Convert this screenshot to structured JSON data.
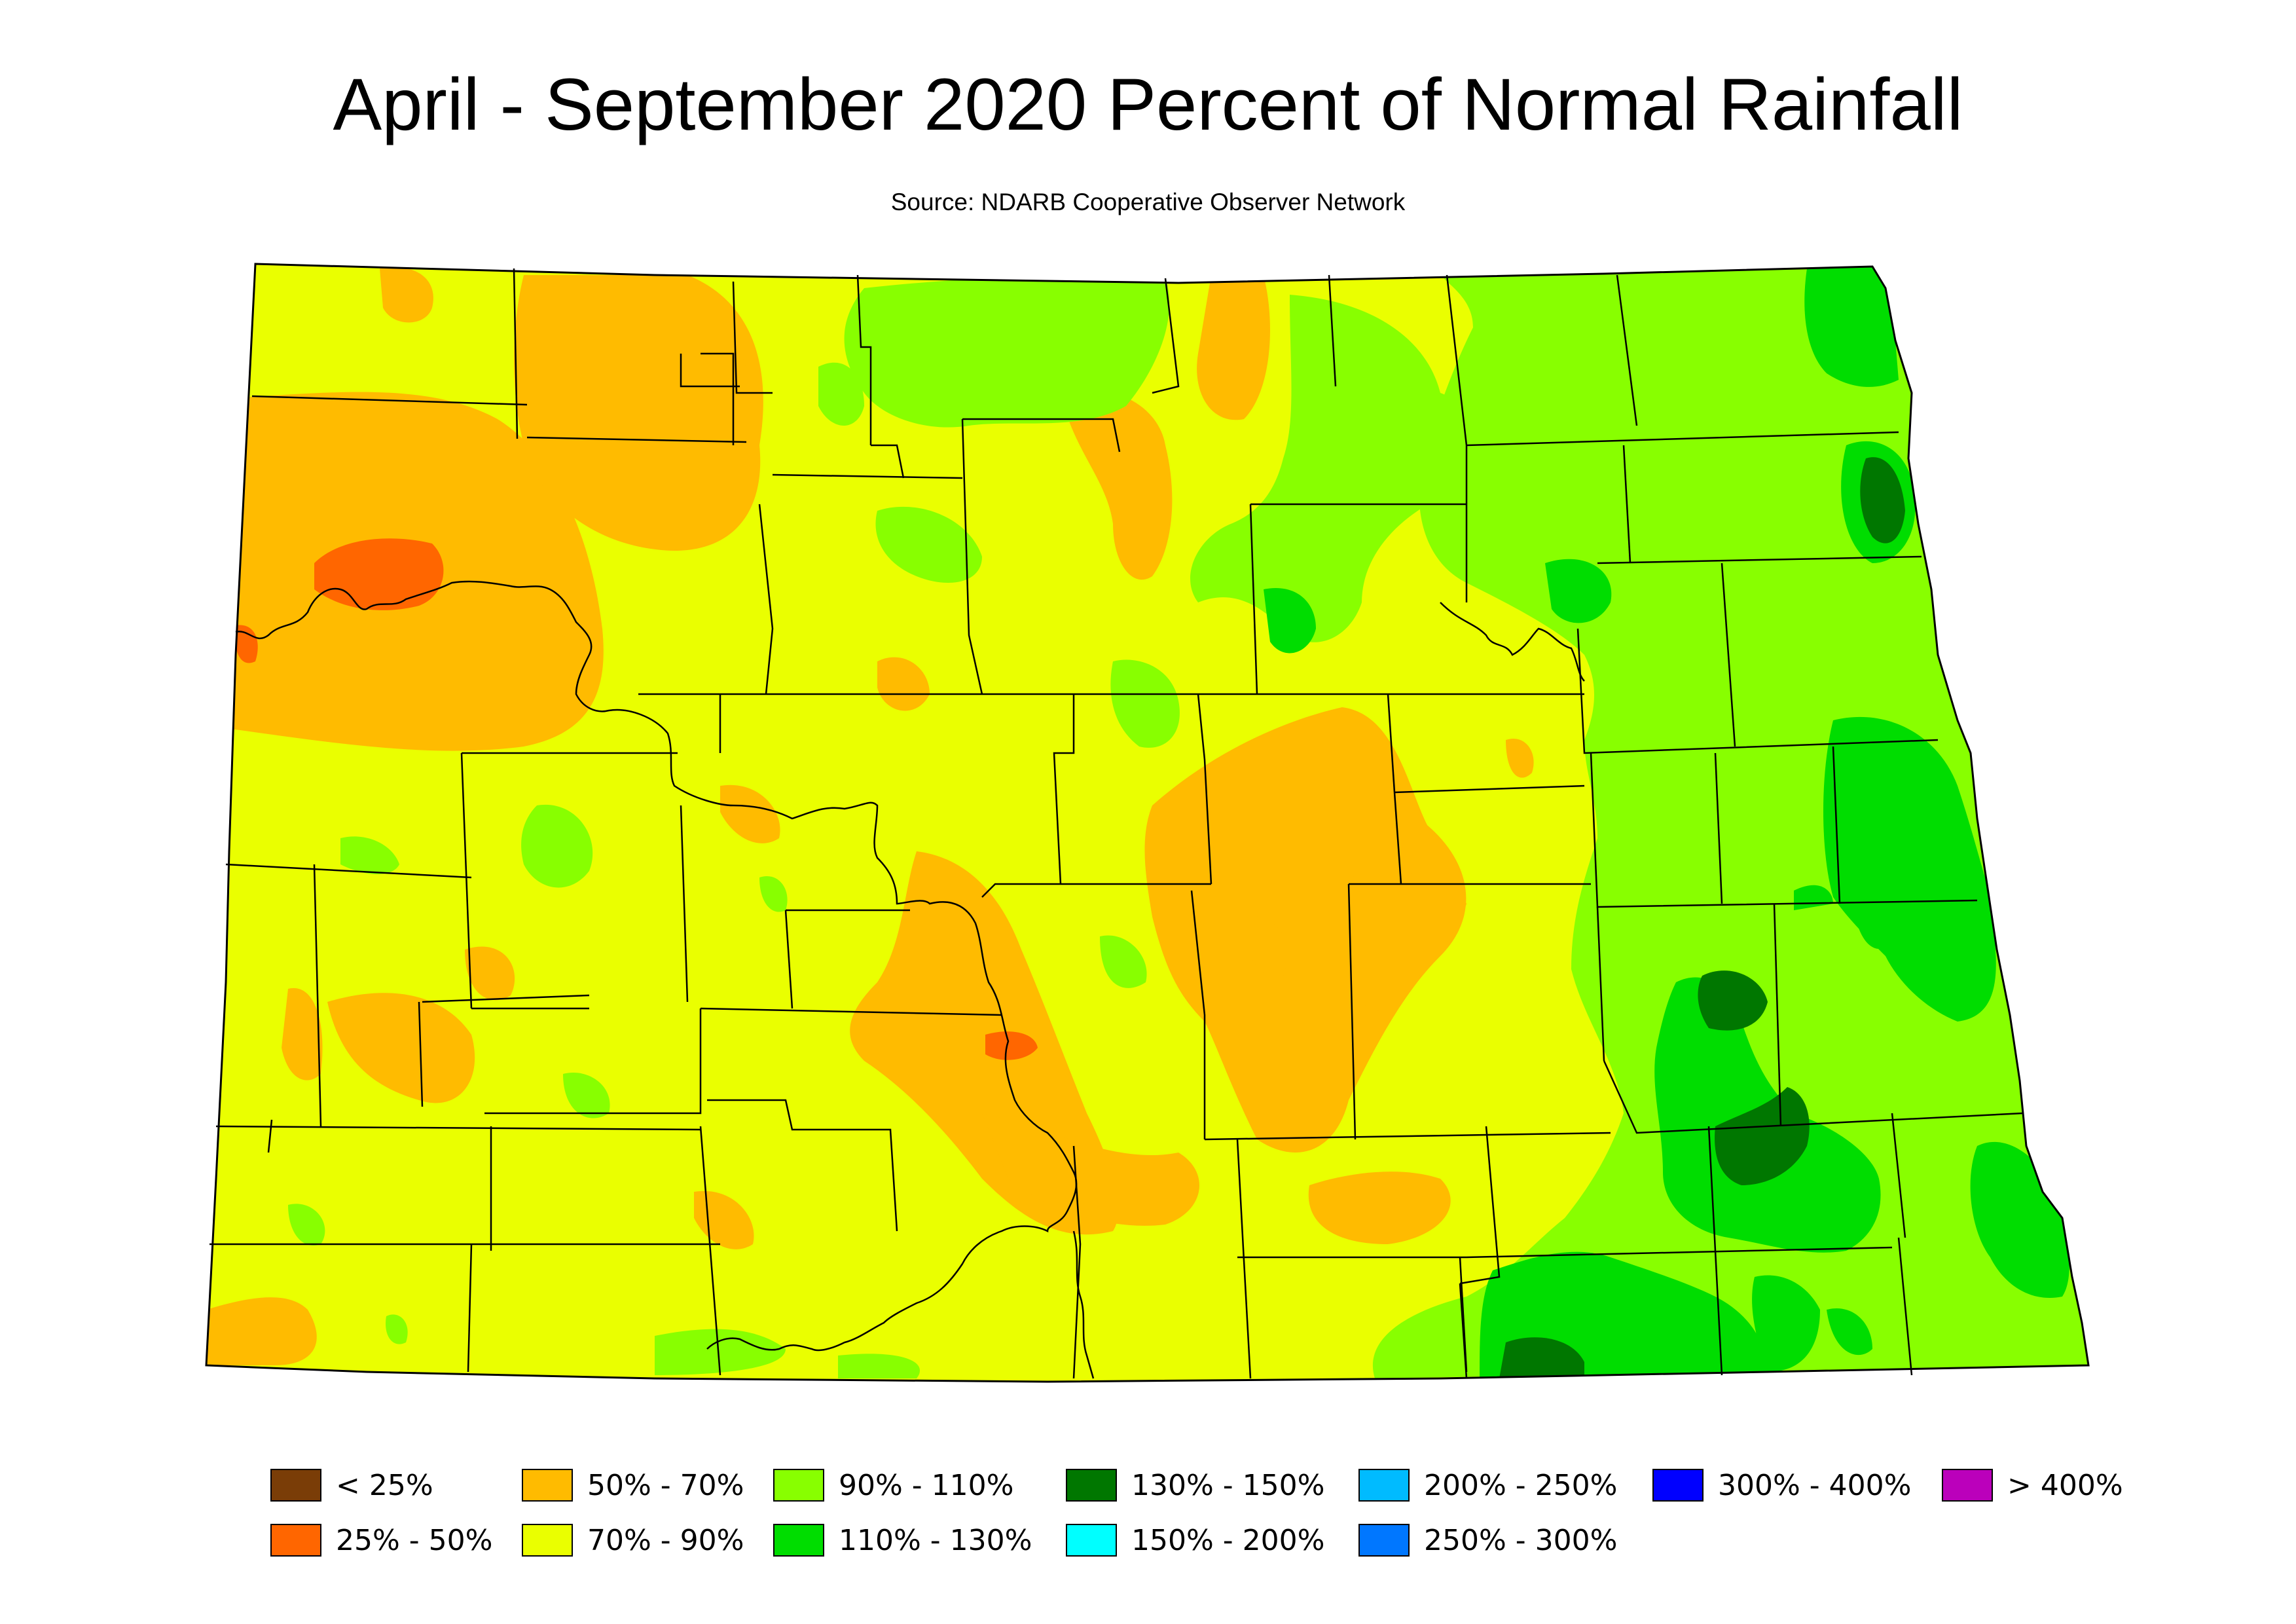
{
  "title": "April - September 2020 Percent of Normal Rainfall",
  "subtitle": "Source: NDARB Cooperative Observer Network",
  "legend": [
    {
      "label": "< 25%",
      "color": "#7a3d07"
    },
    {
      "label": "25% - 50%",
      "color": "#ff6600"
    },
    {
      "label": "50% - 70%",
      "color": "#ffbb00"
    },
    {
      "label": "70% - 90%",
      "color": "#eaff00"
    },
    {
      "label": "90% - 110%",
      "color": "#88ff00"
    },
    {
      "label": "110% - 130%",
      "color": "#00dd00"
    },
    {
      "label": "130% - 150%",
      "color": "#007700"
    },
    {
      "label": "150% - 200%",
      "color": "#00ffff"
    },
    {
      "label": "200% - 250%",
      "color": "#00bbff"
    },
    {
      "label": "250% - 300%",
      "color": "#0077ff"
    },
    {
      "label": "300% - 400%",
      "color": "#0000ff"
    },
    {
      "label": "> 400%",
      "color": "#bb00bb"
    }
  ]
}
